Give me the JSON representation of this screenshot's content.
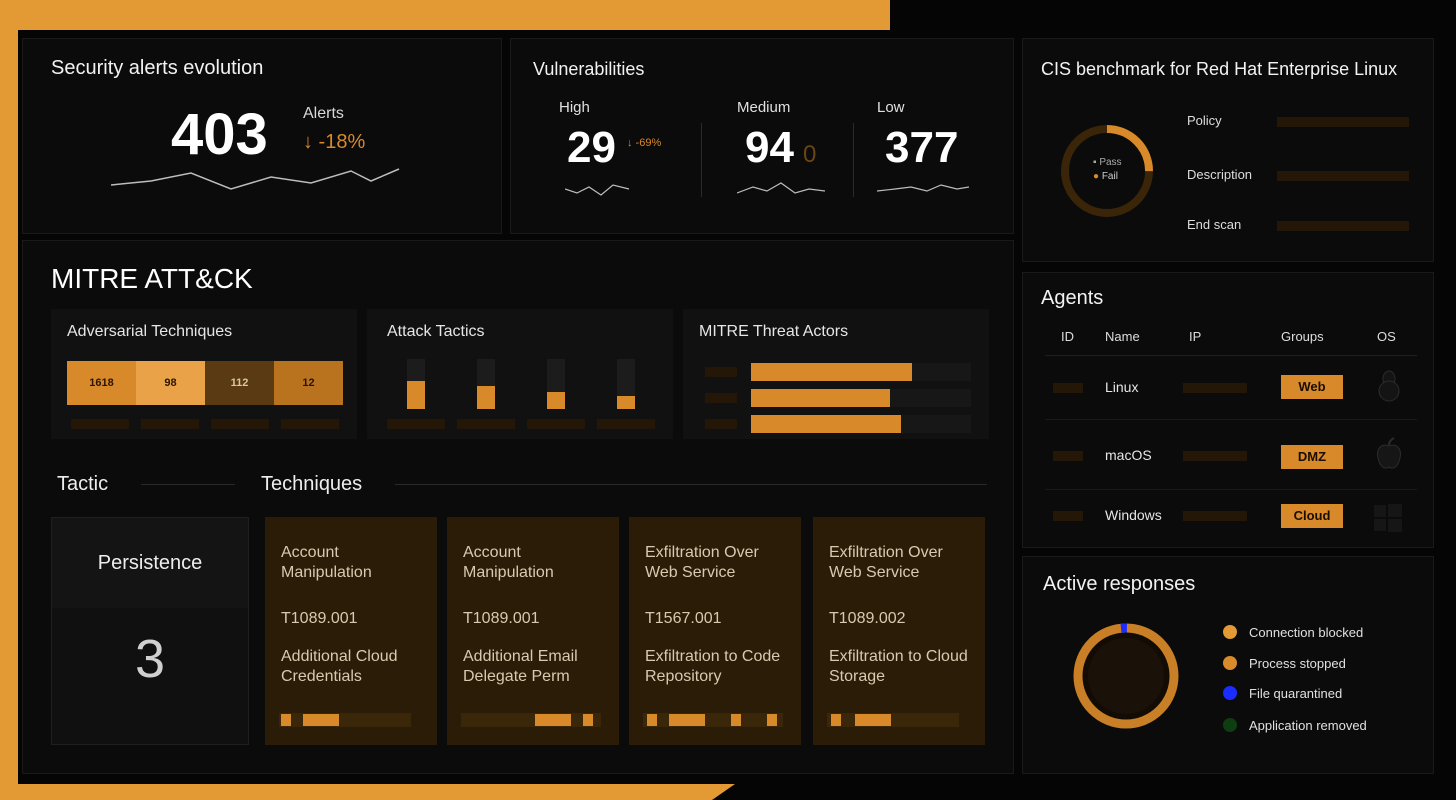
{
  "colors": {
    "accent": "#d8892a",
    "frame": "#e39a35",
    "background": "#0b0b0b",
    "blue": "#1a2cff",
    "green": "#0f3d12"
  },
  "alerts": {
    "title": "Security alerts evolution",
    "value": "403",
    "label": "Alerts",
    "change": "↓ -18%"
  },
  "vulnerabilities": {
    "title": "Vulnerabilities",
    "high": {
      "label": "High",
      "value": "29",
      "change": "↓ -69%"
    },
    "medium": {
      "label": "Medium",
      "value": "94",
      "change": "0"
    },
    "low": {
      "label": "Low",
      "value": "377"
    }
  },
  "cis": {
    "title": "CIS benchmark for Red Hat Enterprise Linux",
    "legend": {
      "pass": "Pass",
      "fail": "Fail"
    },
    "fields": {
      "policy": "Policy",
      "description": "Description",
      "end_scan": "End scan"
    }
  },
  "mitre": {
    "title": "MITRE ATT&CK",
    "adversarial": {
      "title": "Adversarial Techniques",
      "values": [
        "1618",
        "98",
        "112",
        "12"
      ]
    },
    "tactics": {
      "title": "Attack Tactics",
      "levels": [
        0.75,
        0.6,
        0.45,
        0.35
      ]
    },
    "actors": {
      "title": "MITRE Threat Actors",
      "levels": [
        0.75,
        0.65,
        0.7
      ]
    },
    "tactic_header": "Tactic",
    "techniques_header": "Techniques",
    "tactic": {
      "name": "Persistence",
      "count": "3"
    },
    "techniques": [
      {
        "name": "Account Manipulation",
        "id": "T1089.001",
        "sub": "Additional Cloud Credentials"
      },
      {
        "name": "Account Manipulation",
        "id": "T1089.001",
        "sub": "Additional Email Delegate Perm"
      },
      {
        "name": "Exfiltration Over Web Service",
        "id": "T1567.001",
        "sub": "Exfiltration to Code Repository"
      },
      {
        "name": "Exfiltration Over Web Service",
        "id": "T1089.002",
        "sub": "Exfiltration to Cloud Storage"
      }
    ]
  },
  "agents": {
    "title": "Agents",
    "columns": {
      "id": "ID",
      "name": "Name",
      "ip": "IP",
      "groups": "Groups",
      "os": "OS"
    },
    "rows": [
      {
        "name": "Linux",
        "group": "Web",
        "os_icon": "linux-icon"
      },
      {
        "name": "macOS",
        "group": "DMZ",
        "os_icon": "apple-icon"
      },
      {
        "name": "Windows",
        "group": "Cloud",
        "os_icon": "windows-icon"
      }
    ]
  },
  "responses": {
    "title": "Active responses",
    "legend": [
      "Connection blocked",
      "Process stopped",
      "File quarantined",
      "Application removed"
    ]
  }
}
